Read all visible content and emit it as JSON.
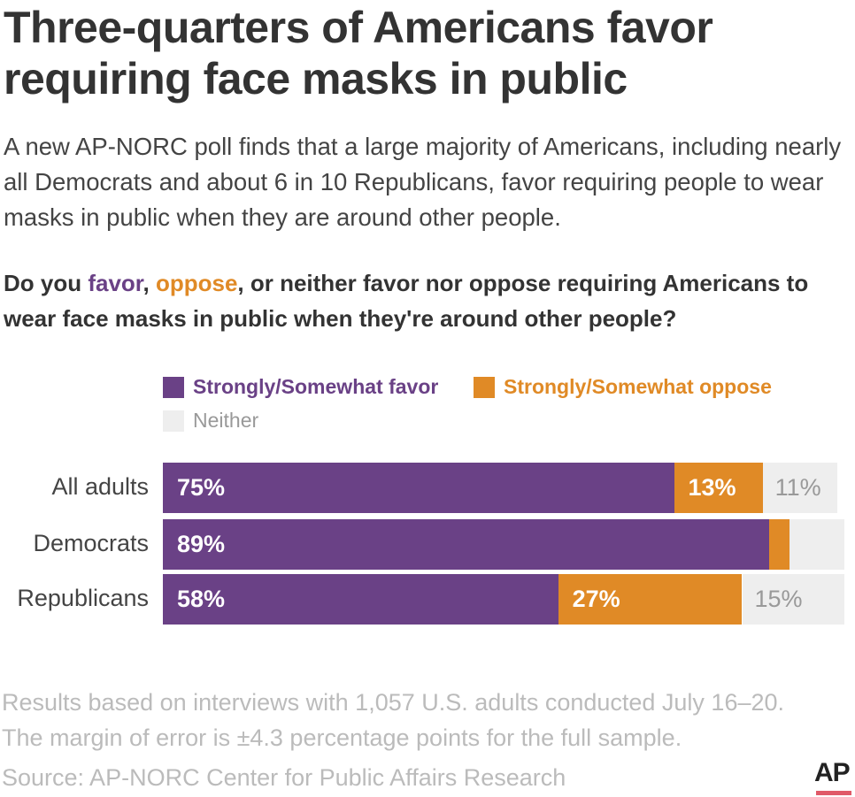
{
  "title": "Three-quarters of Americans favor requiring face masks in public",
  "subtitle": "A new AP-NORC poll finds that a large majority of Americans, including nearly all Democrats and about 6 in 10 Republicans, favor requiring people to wear masks in public when they are around other people.",
  "question": {
    "pre": "Do you ",
    "favor": "favor",
    "comma": ", ",
    "oppose": "oppose",
    "post": ", or neither favor nor oppose requiring Americans to wear face masks in public when they're around other people?"
  },
  "chart_data": {
    "type": "bar",
    "orientation": "horizontal-stacked",
    "categories": [
      "All adults",
      "Democrats",
      "Republicans"
    ],
    "series": [
      {
        "name": "Strongly/Somewhat favor",
        "color": "#6a4186",
        "values": [
          75,
          89,
          58
        ],
        "labels": [
          "75%",
          "89%",
          "58%"
        ]
      },
      {
        "name": "Strongly/Somewhat oppose",
        "color": "#e08a26",
        "values": [
          13,
          3,
          27
        ],
        "labels": [
          "13%",
          "",
          "27%"
        ]
      },
      {
        "name": "Neither",
        "color": "#eeeeee",
        "values": [
          11,
          8,
          15
        ],
        "labels": [
          "11%",
          "",
          "15%"
        ]
      }
    ],
    "xlim": [
      0,
      100
    ],
    "legend": "top"
  },
  "footer": {
    "note1": "Results based on interviews with 1,057 U.S. adults conducted July 16–20.",
    "note2": "The margin of error is ±4.3 percentage points for the full sample.",
    "source": "Source:  AP-NORC Center for Public Affairs Research",
    "logo": "AP"
  }
}
